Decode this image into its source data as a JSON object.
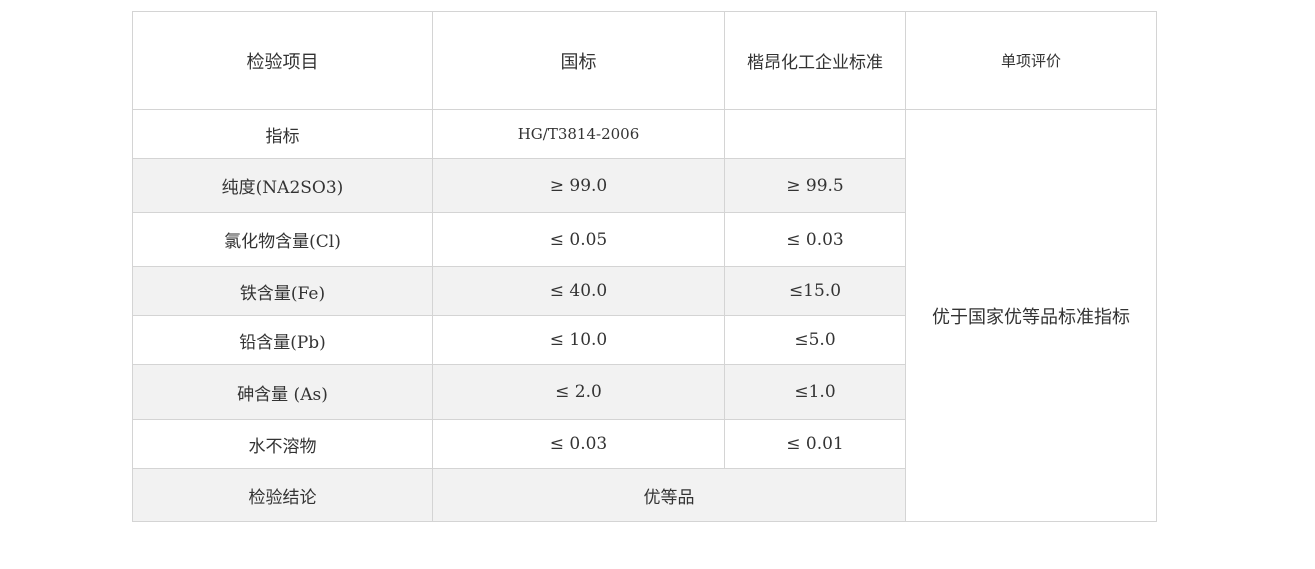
{
  "headers": [
    "检验项目",
    "国标",
    "楷昂化工企业标准",
    "单项评价"
  ],
  "index_row": {
    "label": "指标",
    "national": "HG/T3814-2006",
    "enterprise": ""
  },
  "rows": [
    {
      "item": "纯度(NA2SO3)",
      "national": "≥ 99.0",
      "enterprise": "≥ 99.5"
    },
    {
      "item": "氯化物含量(Cl)",
      "national": "≤ 0.05",
      "enterprise": "≤ 0.03"
    },
    {
      "item": "铁含量(Fe)",
      "national": "≤ 40.0",
      "enterprise": "≤15.0"
    },
    {
      "item": "铅含量(Pb)",
      "national": "≤ 10.0",
      "enterprise": "≤5.0"
    },
    {
      "item": "砷含量 (As)",
      "national": "≤ 2.0",
      "enterprise": "≤1.0"
    },
    {
      "item": "水不溶物",
      "national": "≤ 0.03",
      "enterprise": "≤ 0.01"
    }
  ],
  "conclusion": {
    "label": "检验结论",
    "value": "优等品"
  },
  "evaluation": "优于国家优等品标准指标"
}
